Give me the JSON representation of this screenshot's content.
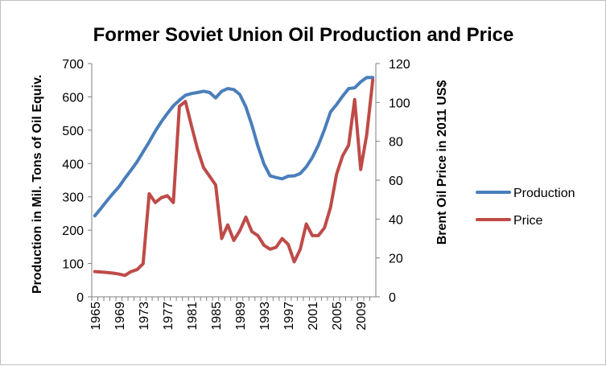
{
  "chart_data": {
    "type": "line",
    "title": "Former Soviet Union Oil Production and Price",
    "ylabel_left": "Production in Mil. Tons of Oil Equiv.",
    "ylabel_right": "Brent Oil Price in 2011 US$",
    "ylim_left": [
      0,
      700
    ],
    "ylim_right": [
      0,
      120
    ],
    "yticks_left": [
      "0",
      "100",
      "200",
      "300",
      "400",
      "500",
      "600",
      "700"
    ],
    "yticks_right": [
      "0",
      "20",
      "40",
      "60",
      "80",
      "100",
      "120"
    ],
    "xticks": [
      "1965",
      "1969",
      "1973",
      "1977",
      "1981",
      "1985",
      "1989",
      "1993",
      "1997",
      "2001",
      "2005",
      "2009"
    ],
    "x": [
      1965,
      1966,
      1967,
      1968,
      1969,
      1970,
      1971,
      1972,
      1973,
      1974,
      1975,
      1976,
      1977,
      1978,
      1979,
      1980,
      1981,
      1982,
      1983,
      1984,
      1985,
      1986,
      1987,
      1988,
      1989,
      1990,
      1991,
      1992,
      1993,
      1994,
      1995,
      1996,
      1997,
      1998,
      1999,
      2000,
      2001,
      2002,
      2003,
      2004,
      2005,
      2006,
      2007,
      2008,
      2009,
      2010,
      2011
    ],
    "legend_position": "right",
    "grid": false,
    "series": [
      {
        "name": "Production",
        "axis": "left",
        "color": "#4a7ebb",
        "values": [
          243,
          265,
          288,
          310,
          330,
          356,
          380,
          405,
          435,
          465,
          497,
          525,
          550,
          573,
          590,
          605,
          610,
          613,
          617,
          613,
          597,
          617,
          625,
          622,
          607,
          570,
          515,
          452,
          398,
          363,
          358,
          354,
          362,
          363,
          370,
          390,
          418,
          455,
          502,
          555,
          577,
          602,
          625,
          627,
          645,
          658,
          658
        ]
      },
      {
        "name": "Price",
        "axis": "right",
        "color": "#be4b48",
        "values": [
          13,
          12.8,
          12.5,
          12.2,
          11.7,
          11.0,
          13.0,
          14.0,
          17.0,
          53.0,
          48.5,
          51.0,
          52.0,
          48.5,
          98.0,
          100.5,
          88.0,
          76.0,
          66.5,
          62.0,
          57.5,
          30.0,
          37.0,
          29.0,
          34.0,
          41.0,
          33.5,
          31.5,
          26.5,
          24.5,
          25.5,
          30.0,
          27.0,
          18.0,
          24.5,
          37.5,
          31.5,
          31.5,
          35.5,
          46.0,
          63.0,
          72.5,
          78.0,
          101.5,
          65.5,
          83.5,
          111.5
        ]
      }
    ]
  }
}
